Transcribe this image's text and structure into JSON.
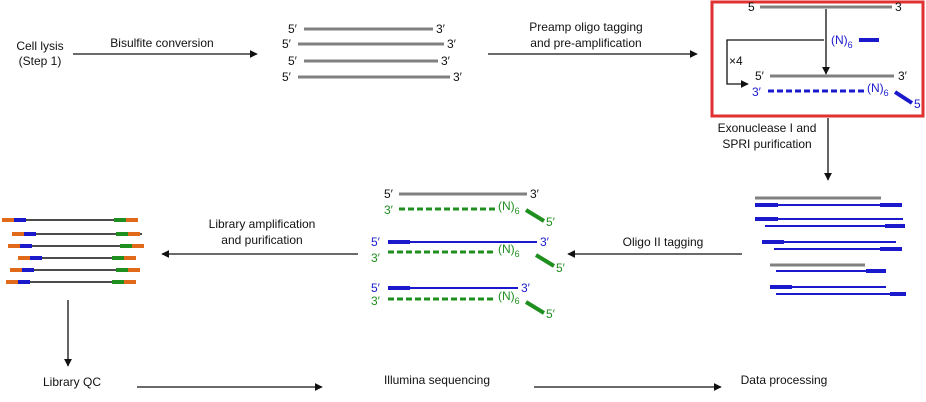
{
  "colors": {
    "gray": "#808080",
    "blue": "#1a1acc",
    "green": "#1f8f1f",
    "orange": "#e06a1a",
    "highlight_box": "#e03030",
    "text": "#111111"
  },
  "labels": {
    "cell_lysis_1": "Cell lysis",
    "cell_lysis_2": "(Step 1)",
    "bisulfite": "Bisulfite conversion",
    "preamp_1": "Preamp oligo tagging",
    "preamp_2": "and pre-amplification",
    "exo_1": "Exonuclease I and",
    "exo_2": "SPRI purification",
    "oligo2": "Oligo II tagging",
    "libamp_1": "Library amplification",
    "libamp_2": "and purification",
    "libqc": "Library QC",
    "illumina": "Illumina sequencing",
    "dataproc": "Data processing",
    "cycle": "×4"
  },
  "ends": {
    "five": "5′",
    "three": "3′",
    "five_plain": "5",
    "three_plain": "3",
    "n_base": "(N)",
    "n_sub": "6"
  }
}
